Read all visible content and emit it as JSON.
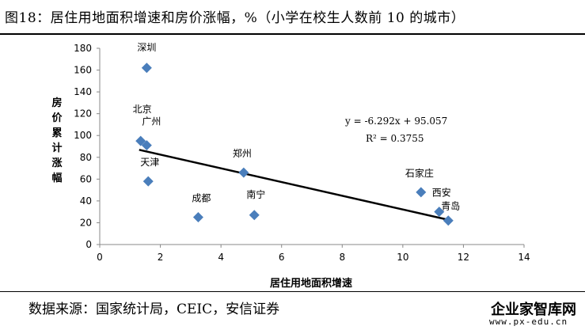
{
  "header": {
    "title": "图18：居住用地面积增速和房价涨幅，%（小学在校生人数前 10 的城市）"
  },
  "footer": {
    "source": "数据来源：国家统计局，CEIC，安信证券",
    "watermark_name": "企业家智库网",
    "watermark_url": "www.px-edu.cn"
  },
  "chart_data": {
    "type": "scatter",
    "xlabel": "居住用地面积增速",
    "ylabel": "房价累计涨幅",
    "xlim": [
      0,
      14
    ],
    "ylim": [
      0,
      180
    ],
    "xticks": [
      0,
      2,
      4,
      6,
      8,
      10,
      12,
      14
    ],
    "yticks": [
      0,
      20,
      40,
      60,
      80,
      100,
      120,
      140,
      160,
      180
    ],
    "marker_color": "#4a7ebb",
    "points": [
      {
        "label": "深圳",
        "x": 1.55,
        "y": 162
      },
      {
        "label": "北京",
        "x": 1.35,
        "y": 95
      },
      {
        "label": "广州",
        "x": 1.55,
        "y": 91
      },
      {
        "label": "天津",
        "x": 1.6,
        "y": 58
      },
      {
        "label": "成都",
        "x": 3.25,
        "y": 25
      },
      {
        "label": "郑州",
        "x": 4.75,
        "y": 66
      },
      {
        "label": "南宁",
        "x": 5.1,
        "y": 27
      },
      {
        "label": "石家庄",
        "x": 10.6,
        "y": 48
      },
      {
        "label": "西安",
        "x": 11.2,
        "y": 30
      },
      {
        "label": "青岛",
        "x": 11.5,
        "y": 22
      }
    ],
    "trendline": {
      "slope": -6.292,
      "intercept": 95.057,
      "x_range": [
        1.3,
        11.5
      ],
      "equation": "y = -6.292x + 95.057",
      "r_squared": "R² = 0.3755"
    }
  }
}
